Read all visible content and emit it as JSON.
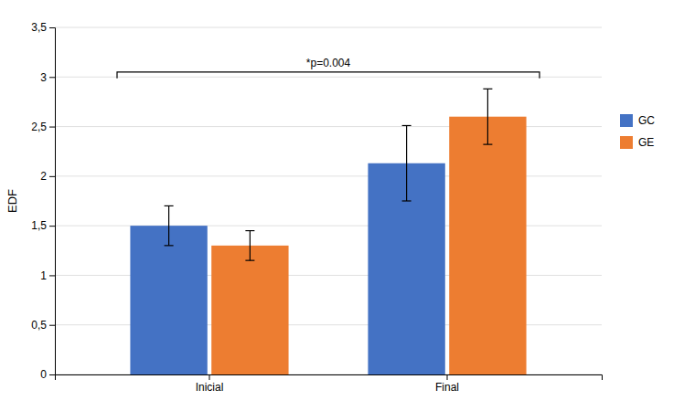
{
  "chart_data": {
    "type": "bar",
    "categories": [
      "Inicial",
      "Final"
    ],
    "series": [
      {
        "name": "GC",
        "color": "#4472C4",
        "values": [
          1.5,
          2.13
        ],
        "errors": [
          0.2,
          0.38
        ]
      },
      {
        "name": "GE",
        "color": "#ED7D31",
        "values": [
          1.3,
          2.6
        ],
        "errors": [
          0.15,
          0.28
        ]
      }
    ],
    "ylabel": "EDF",
    "ylim": [
      0,
      3.5
    ],
    "yticks": [
      0,
      {
        "value": 0.5,
        "label": "0,5"
      },
      1,
      {
        "value": 1.5,
        "label": "1,5"
      },
      2,
      {
        "value": 2.5,
        "label": "2,5"
      },
      3,
      {
        "value": 3.5,
        "label": "3,5"
      }
    ],
    "grid": true,
    "legend": "right",
    "annotations": [
      {
        "text": "*p=0.004",
        "y": 3.05
      }
    ]
  }
}
